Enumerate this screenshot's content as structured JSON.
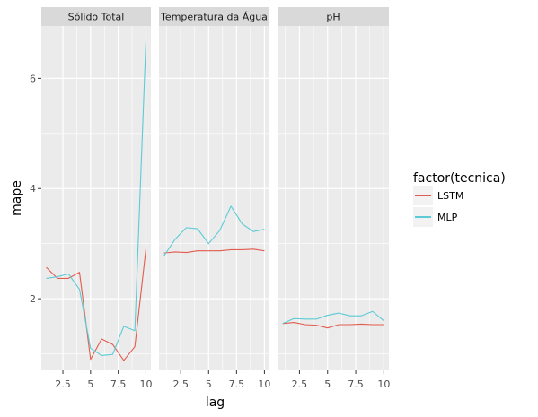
{
  "chart_data": {
    "type": "line",
    "facet_by": "variable",
    "panels": [
      "Sólido Total",
      "Temperatura da Água",
      "pH"
    ],
    "xlabel": "lag",
    "ylabel": "mape",
    "x_ticks": [
      2.5,
      5,
      7.5,
      10
    ],
    "x_tick_labels": [
      "2.5",
      "5",
      "7.5",
      "10"
    ],
    "y_ticks": [
      2,
      4,
      6
    ],
    "y_tick_labels": [
      "2",
      "4",
      "6"
    ],
    "xlim": [
      0.55,
      10.45
    ],
    "ylim": [
      0.7,
      6.95
    ],
    "legend": {
      "title": "factor(tecnica)",
      "placement": "right",
      "entries": [
        "LSTM",
        "MLP"
      ]
    },
    "x": [
      1,
      2,
      3,
      4,
      5,
      6,
      7,
      8,
      9,
      10
    ],
    "series": [
      {
        "name": "LSTM",
        "color": "#E15C4F",
        "values": {
          "Sólido Total": [
            2.57,
            2.37,
            2.37,
            2.48,
            0.9,
            1.27,
            1.17,
            0.88,
            1.13,
            2.9
          ],
          "Temperatura da Água": [
            2.83,
            2.85,
            2.84,
            2.87,
            2.87,
            2.87,
            2.89,
            2.89,
            2.9,
            2.87
          ],
          "pH": [
            1.55,
            1.57,
            1.53,
            1.52,
            1.47,
            1.53,
            1.53,
            1.54,
            1.53,
            1.53
          ]
        }
      },
      {
        "name": "MLP",
        "color": "#5BCBD6",
        "values": {
          "Sólido Total": [
            2.37,
            2.4,
            2.45,
            2.17,
            1.1,
            0.97,
            0.99,
            1.5,
            1.42,
            6.68
          ],
          "Temperatura da Água": [
            2.78,
            3.08,
            3.29,
            3.27,
            3.0,
            3.24,
            3.68,
            3.36,
            3.22,
            3.26
          ],
          "pH": [
            1.55,
            1.64,
            1.63,
            1.63,
            1.7,
            1.74,
            1.69,
            1.69,
            1.77,
            1.6
          ]
        }
      }
    ]
  }
}
